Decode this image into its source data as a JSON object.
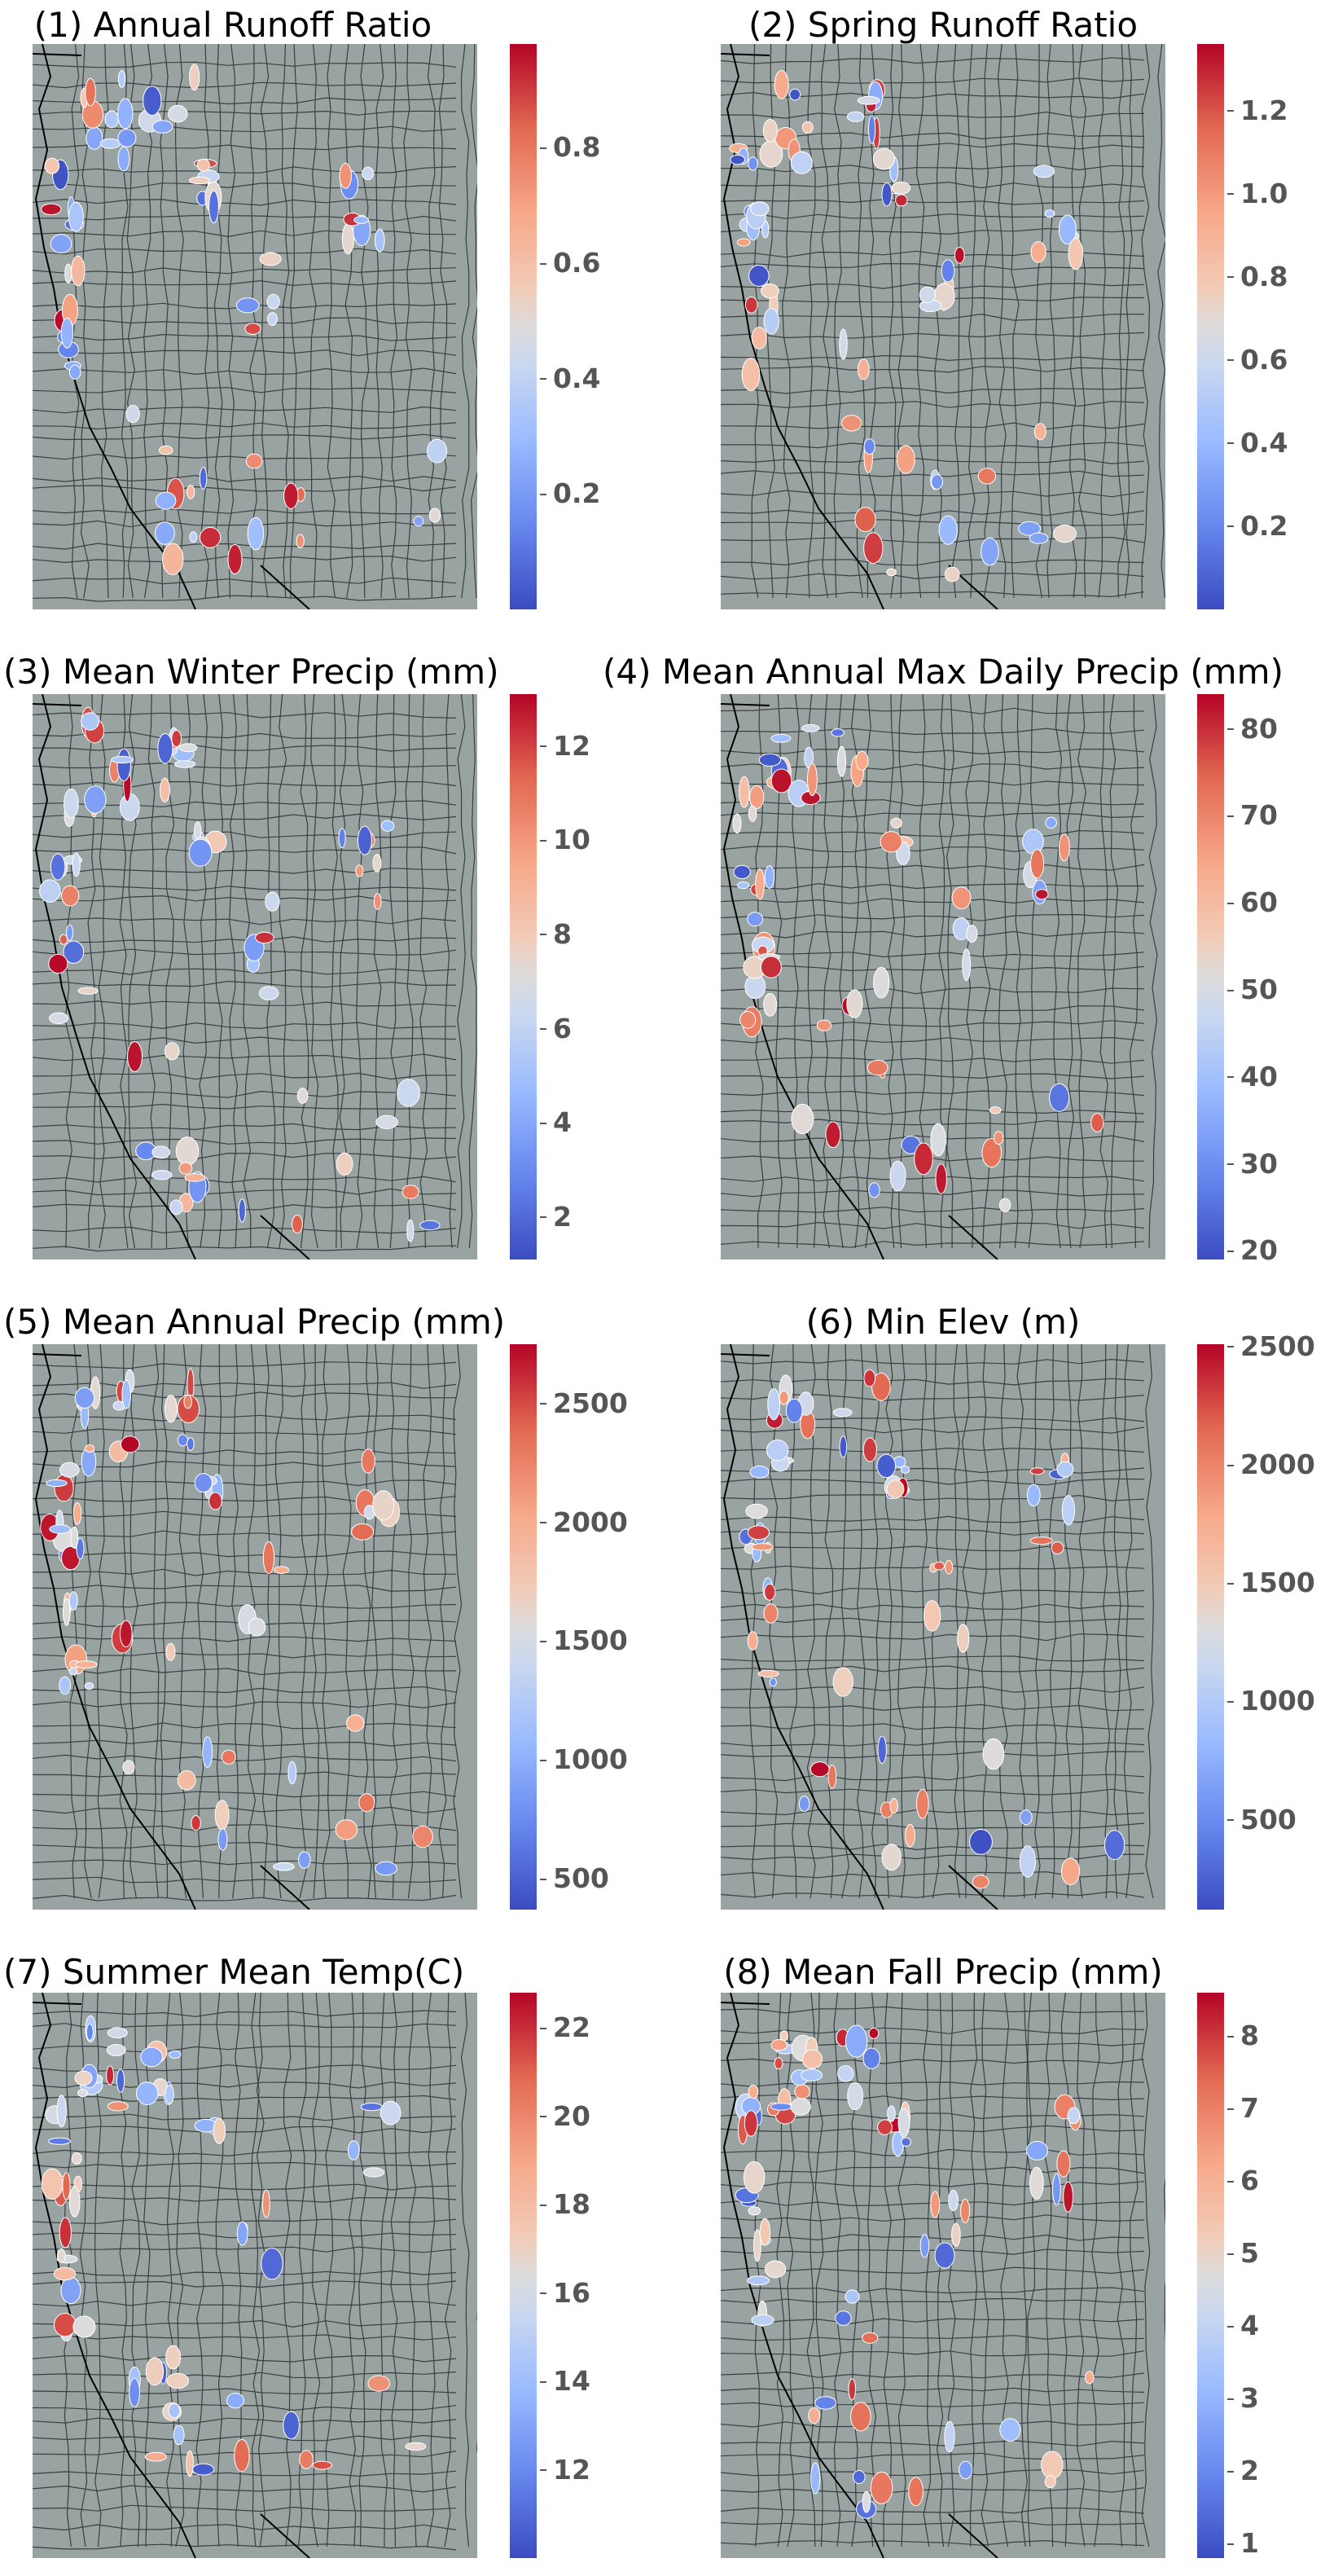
{
  "figure": {
    "colormap": [
      "#3b4cc0",
      "#6788ee",
      "#9abbff",
      "#c9d7f0",
      "#dddcdc",
      "#f2cbb7",
      "#f7a889",
      "#e26952",
      "#b40426"
    ],
    "map_background": "#99a3a2",
    "border_color": "#3b3f3f",
    "coast_color": "#000000"
  },
  "panels": [
    {
      "title": "(1) Annual Runoff Ratio",
      "ticks": [
        "0.2",
        "0.4",
        "0.6",
        "0.8"
      ],
      "tick_values": [
        0.2,
        0.4,
        0.6,
        0.8
      ],
      "range": [
        0.0,
        0.98
      ]
    },
    {
      "title": "(2) Spring Runoff Ratio",
      "ticks": [
        "0.2",
        "0.4",
        "0.6",
        "0.8",
        "1.0",
        "1.2"
      ],
      "tick_values": [
        0.2,
        0.4,
        0.6,
        0.8,
        1.0,
        1.2
      ],
      "range": [
        0.0,
        1.36
      ]
    },
    {
      "title": "(3) Mean Winter Precip (mm)",
      "ticks": [
        "2",
        "4",
        "6",
        "8",
        "10",
        "12"
      ],
      "tick_values": [
        2,
        4,
        6,
        8,
        10,
        12
      ],
      "range": [
        1.1,
        13.1
      ]
    },
    {
      "title": "(4) Mean Annual Max Daily Precip (mm)",
      "ticks": [
        "20",
        "30",
        "40",
        "50",
        "60",
        "70",
        "80"
      ],
      "tick_values": [
        20,
        30,
        40,
        50,
        60,
        70,
        80
      ],
      "range": [
        19,
        84
      ]
    },
    {
      "title": "(5) Mean Annual Precip (mm)",
      "ticks": [
        "500",
        "1000",
        "1500",
        "2000",
        "2500"
      ],
      "tick_values": [
        500,
        1000,
        1500,
        2000,
        2500
      ],
      "range": [
        370,
        2750
      ]
    },
    {
      "title": "(6) Min Elev (m)",
      "ticks": [
        "500",
        "1000",
        "1500",
        "2000",
        "2500"
      ],
      "tick_values": [
        500,
        1000,
        1500,
        2000,
        2500
      ],
      "range": [
        120,
        2510
      ]
    },
    {
      "title": "(7) Summer Mean Temp(C)",
      "ticks": [
        "12",
        "14",
        "16",
        "18",
        "20",
        "22"
      ],
      "tick_values": [
        12,
        14,
        16,
        18,
        20,
        22
      ],
      "range": [
        10.0,
        22.8
      ]
    },
    {
      "title": "(8) Mean Fall Precip (mm)",
      "ticks": [
        "1",
        "2",
        "3",
        "4",
        "5",
        "6",
        "7",
        "8"
      ],
      "tick_values": [
        1,
        2,
        3,
        4,
        5,
        6,
        7,
        8
      ],
      "range": [
        0.8,
        8.6
      ]
    }
  ]
}
